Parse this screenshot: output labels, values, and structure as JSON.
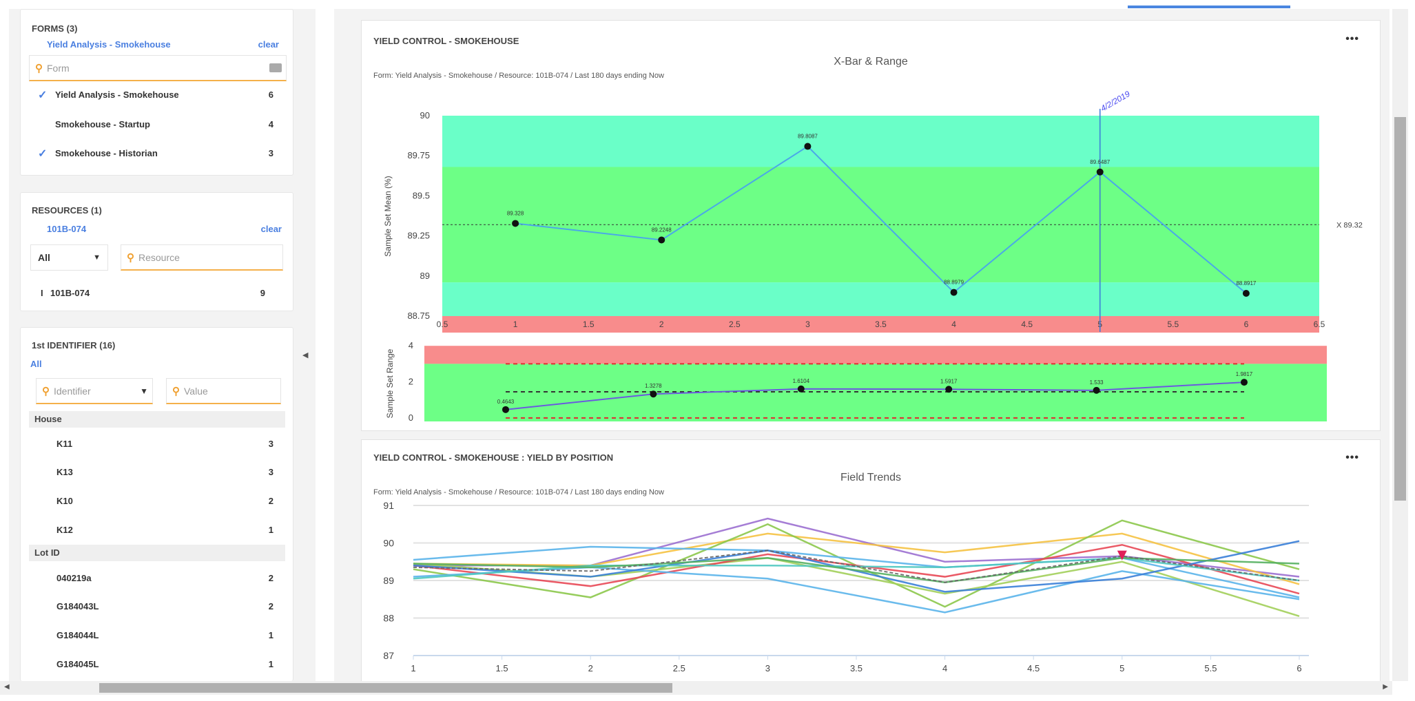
{
  "sidebar": {
    "forms": {
      "title": "FORMS (3)",
      "selected": "Yield Analysis - Smokehouse",
      "clear": "clear",
      "placeholder": "Form",
      "items": [
        {
          "label": "Yield Analysis - Smokehouse",
          "count": "6",
          "checked": true
        },
        {
          "label": "Smokehouse - Startup",
          "count": "4",
          "checked": false
        },
        {
          "label": "Smokehouse - Historian",
          "count": "3",
          "checked": true
        }
      ]
    },
    "resources": {
      "title": "RESOURCES (1)",
      "selected": "101B-074",
      "clear": "clear",
      "filter": "All",
      "placeholder": "Resource",
      "items": [
        {
          "marker": "I",
          "label": "101B-074",
          "count": "9"
        }
      ]
    },
    "identifier": {
      "title": "1st IDENTIFIER (16)",
      "all": "All",
      "identifier_placeholder": "Identifier",
      "value_placeholder": "Value",
      "groups": [
        {
          "name": "House",
          "items": [
            {
              "label": "K11",
              "count": "3"
            },
            {
              "label": "K13",
              "count": "3"
            },
            {
              "label": "K10",
              "count": "2"
            },
            {
              "label": "K12",
              "count": "1"
            }
          ]
        },
        {
          "name": "Lot ID",
          "items": [
            {
              "label": "040219a",
              "count": "2"
            },
            {
              "label": "G184043L",
              "count": "2"
            },
            {
              "label": "G184044L",
              "count": "1"
            },
            {
              "label": "G184045L",
              "count": "1"
            }
          ]
        }
      ]
    }
  },
  "cards": [
    {
      "title": "YIELD CONTROL - SMOKEHOUSE",
      "subtitle": "Form: Yield Analysis - Smokehouse / Resource: 101B-074 / Last 180 days ending Now",
      "menu": "•••"
    },
    {
      "title": "YIELD CONTROL - SMOKEHOUSE : YIELD BY POSITION",
      "subtitle": "Form: Yield Analysis - Smokehouse / Resource: 101B-074 / Last 180 days ending Now",
      "menu": "•••"
    }
  ],
  "chart_data": [
    {
      "type": "line",
      "title": "X-Bar & Range",
      "ylabel": "Sample Set Mean (%)",
      "x": [
        1,
        2,
        3,
        4,
        5,
        6
      ],
      "values": [
        89.328,
        89.2248,
        89.8087,
        88.8979,
        89.6487,
        88.8917
      ],
      "labels": [
        "89.328",
        "89.2248",
        "89.8087",
        "88.8979",
        "89.6487",
        "88.8917"
      ],
      "xlim": [
        0.5,
        6.5
      ],
      "ylim": [
        88.75,
        90
      ],
      "xticks": [
        "0.5",
        "1",
        "1.5",
        "2",
        "2.5",
        "3",
        "3.5",
        "4",
        "4.5",
        "5",
        "5.5",
        "6",
        "6.5"
      ],
      "yticks": [
        "90",
        "89.75",
        "89.5",
        "89.25",
        "89",
        "88.75"
      ],
      "mean": 89.32,
      "mean_label": "X 89.32",
      "marker_x": 5,
      "marker_label": "4/2/2019",
      "zones": {
        "upper_warn": [
          89.68,
          90
        ],
        "normal": [
          88.96,
          89.68
        ],
        "lower_warn": [
          88.75,
          88.96
        ]
      },
      "colors": {
        "line": "#4aa8e8",
        "warn": "#6affc8",
        "normal": "#6dff86",
        "out": "#f88c8c"
      }
    },
    {
      "type": "line",
      "ylabel": "Sample Set Range",
      "x": [
        1,
        2,
        3,
        4,
        5,
        6
      ],
      "values": [
        0.4643,
        1.3278,
        1.6104,
        1.5917,
        1.533,
        1.9817
      ],
      "labels": [
        "0.4643",
        "1.3278",
        "1.6104",
        "1.5917",
        "1.533",
        "1.9817"
      ],
      "ylim": [
        0,
        4
      ],
      "yticks": [
        "4",
        "2",
        "0"
      ],
      "ucl": 3,
      "center": 1.45,
      "lcl": 0,
      "colors": {
        "line": "#6a5adf"
      }
    },
    {
      "type": "line",
      "title": "Field Trends",
      "xlim": [
        1,
        6
      ],
      "ylim": [
        87,
        91
      ],
      "xticks": [
        "1",
        "1.5",
        "2",
        "2.5",
        "3",
        "3.5",
        "4",
        "4.5",
        "5",
        "5.5",
        "6"
      ],
      "yticks": [
        "91",
        "90",
        "89",
        "88",
        "87"
      ],
      "x": [
        1,
        2,
        3,
        4,
        5,
        6
      ],
      "series": [
        {
          "color": "#9b6fd0",
          "values": [
            89.4,
            89.4,
            90.65,
            89.5,
            89.65,
            89.1
          ]
        },
        {
          "color": "#f5c242",
          "values": [
            89.45,
            89.4,
            90.25,
            89.75,
            90.25,
            88.9
          ]
        },
        {
          "color": "#8cc84b",
          "values": [
            89.3,
            88.55,
            90.5,
            88.3,
            90.6,
            89.3
          ]
        },
        {
          "color": "#a2cf5a",
          "values": [
            89.45,
            89.1,
            89.6,
            88.65,
            89.5,
            88.05
          ]
        },
        {
          "color": "#e84855",
          "values": [
            89.4,
            88.85,
            89.7,
            89.1,
            89.95,
            88.65
          ]
        },
        {
          "color": "#5ab4ea",
          "values": [
            89.55,
            89.9,
            89.8,
            89.35,
            89.6,
            88.55
          ]
        },
        {
          "color": "#5ab4ea",
          "values": [
            89.1,
            89.35,
            89.05,
            88.15,
            89.25,
            88.5
          ]
        },
        {
          "color": "#3a80d8",
          "values": [
            89.4,
            89.1,
            89.8,
            88.7,
            89.05,
            90.05
          ]
        },
        {
          "color": "#4fc8c0",
          "values": [
            89.05,
            89.4,
            89.4,
            89.35,
            89.6,
            89.0
          ]
        },
        {
          "color": "#55b060",
          "values": [
            89.45,
            89.35,
            89.6,
            88.95,
            89.6,
            89.45
          ]
        },
        {
          "color": "#666666",
          "dashed": true,
          "values": [
            89.35,
            89.25,
            89.8,
            88.95,
            89.65,
            89.0
          ]
        }
      ],
      "marker": {
        "x": 5,
        "y": 89.65,
        "color": "#e0205a"
      }
    }
  ]
}
